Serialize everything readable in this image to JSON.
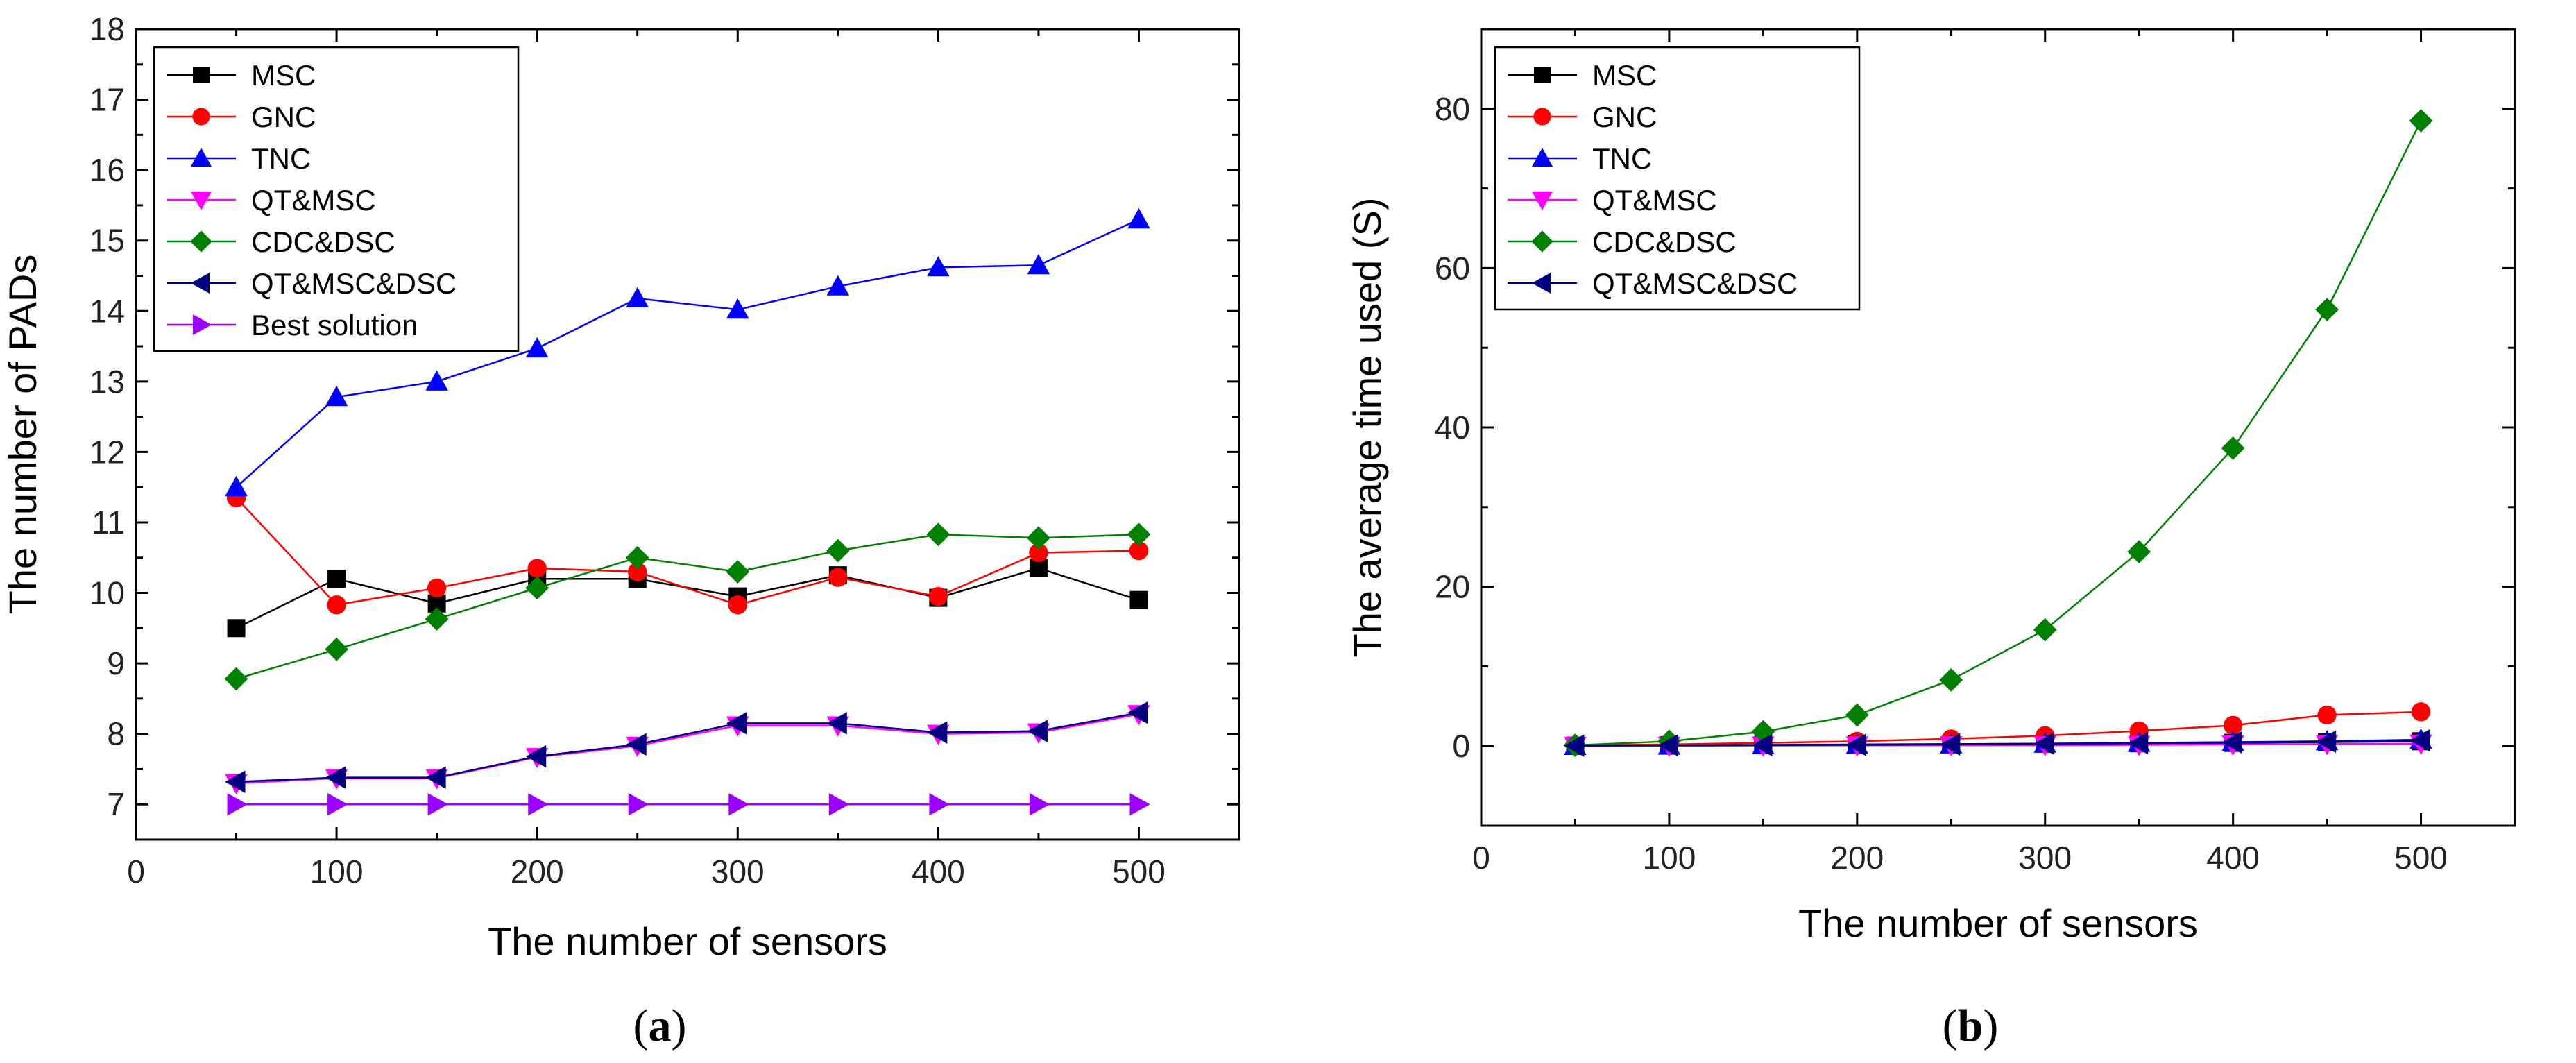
{
  "colors": {
    "MSC": "#000000",
    "GNC": "#ff0000",
    "TNC": "#0000ff",
    "QT&MSC": "#ff00ff",
    "CDC&DSC": "#008000",
    "QT&MSC&DSC": "#000080",
    "Best solution": "#9900ff"
  },
  "chart_data": [
    {
      "type": "line",
      "panel_label": "a",
      "xlabel": "The number of sensors",
      "ylabel": "The number of PADs",
      "xlim": [
        0,
        550
      ],
      "ylim": [
        6.5,
        18
      ],
      "xticks": [
        0,
        100,
        200,
        300,
        400,
        500
      ],
      "yticks": [
        7,
        8,
        9,
        10,
        11,
        12,
        13,
        14,
        15,
        16,
        17,
        18
      ],
      "legend_position": "top-left",
      "x": [
        50,
        100,
        150,
        200,
        250,
        300,
        350,
        400,
        450,
        500
      ],
      "series": [
        {
          "name": "MSC",
          "marker": "square",
          "values": [
            9.5,
            10.2,
            9.85,
            10.2,
            10.2,
            9.95,
            10.25,
            9.93,
            10.35,
            9.9
          ]
        },
        {
          "name": "GNC",
          "marker": "circle",
          "values": [
            11.35,
            9.83,
            10.07,
            10.35,
            10.3,
            9.83,
            10.22,
            9.95,
            10.57,
            10.6
          ]
        },
        {
          "name": "TNC",
          "marker": "triangle-up",
          "values": [
            11.5,
            12.78,
            13.0,
            13.47,
            14.18,
            14.02,
            14.35,
            14.62,
            14.65,
            15.3
          ]
        },
        {
          "name": "QT&MSC",
          "marker": "triangle-down",
          "values": [
            7.3,
            7.37,
            7.37,
            7.67,
            7.83,
            8.12,
            8.12,
            8.0,
            8.02,
            8.28
          ]
        },
        {
          "name": "CDC&DSC",
          "marker": "diamond",
          "values": [
            8.78,
            9.2,
            9.63,
            10.07,
            10.5,
            10.3,
            10.6,
            10.83,
            10.78,
            10.83
          ]
        },
        {
          "name": "QT&MSC&DSC",
          "marker": "triangle-left",
          "values": [
            7.32,
            7.38,
            7.38,
            7.68,
            7.85,
            8.15,
            8.15,
            8.02,
            8.04,
            8.3
          ]
        },
        {
          "name": "Best solution",
          "marker": "triangle-right",
          "values": [
            7.0,
            7.0,
            7.0,
            7.0,
            7.0,
            7.0,
            7.0,
            7.0,
            7.0,
            7.0
          ]
        }
      ]
    },
    {
      "type": "line",
      "panel_label": "b",
      "xlabel": "The number of sensors",
      "ylabel": "The average time used (S)",
      "xlim": [
        0,
        550
      ],
      "ylim": [
        -10,
        90
      ],
      "xticks": [
        0,
        100,
        200,
        300,
        400,
        500
      ],
      "yticks": [
        0,
        20,
        40,
        60,
        80
      ],
      "legend_position": "top-left",
      "x": [
        50,
        100,
        150,
        200,
        250,
        300,
        350,
        400,
        450,
        500
      ],
      "series": [
        {
          "name": "MSC",
          "marker": "square",
          "values": [
            0.05,
            0.1,
            0.15,
            0.2,
            0.25,
            0.3,
            0.35,
            0.4,
            0.5,
            0.6
          ]
        },
        {
          "name": "GNC",
          "marker": "circle",
          "values": [
            0.1,
            0.2,
            0.4,
            0.6,
            0.9,
            1.3,
            1.9,
            2.6,
            3.9,
            4.3
          ]
        },
        {
          "name": "TNC",
          "marker": "triangle-up",
          "values": [
            0.02,
            0.05,
            0.1,
            0.15,
            0.2,
            0.3,
            0.4,
            0.5,
            0.6,
            0.8
          ]
        },
        {
          "name": "QT&MSC",
          "marker": "triangle-down",
          "values": [
            0.02,
            0.04,
            0.06,
            0.08,
            0.1,
            0.12,
            0.15,
            0.2,
            0.25,
            0.3
          ]
        },
        {
          "name": "CDC&DSC",
          "marker": "diamond",
          "values": [
            0.1,
            0.6,
            1.8,
            3.9,
            8.3,
            14.6,
            24.4,
            37.4,
            54.8,
            78.5
          ]
        },
        {
          "name": "QT&MSC&DSC",
          "marker": "triangle-left",
          "values": [
            0.05,
            0.08,
            0.12,
            0.15,
            0.2,
            0.3,
            0.35,
            0.45,
            0.55,
            0.7
          ]
        }
      ]
    }
  ]
}
